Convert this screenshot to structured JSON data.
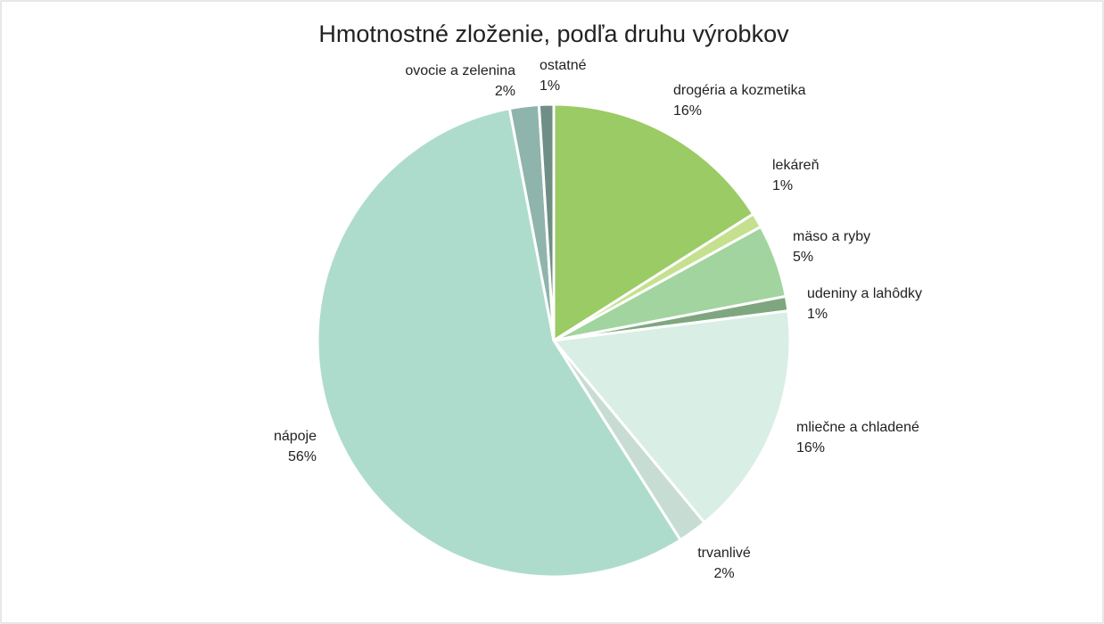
{
  "chart_data": {
    "type": "pie",
    "title": "Hmotnostné zloženie, podľa druhu výrobkov",
    "categories": [
      "drogéria a kozmetika",
      "lekáreň",
      "mäso a ryby",
      "udeniny a lahôdky",
      "mliečne a chladené",
      "trvanlivé",
      "nápoje",
      "ovocie a zelenina",
      "ostatné"
    ],
    "values": [
      16,
      1,
      5,
      1,
      16,
      2,
      56,
      2,
      1
    ],
    "value_labels": [
      "16%",
      "1%",
      "5%",
      "1%",
      "16%",
      "2%",
      "56%",
      "2%",
      "1%"
    ],
    "colors": [
      "#9bcb65",
      "#c5e08f",
      "#a1d49e",
      "#7fa77f",
      "#d9eee5",
      "#c7ddd3",
      "#aedccc",
      "#8fb4ab",
      "#6f8f86"
    ]
  }
}
